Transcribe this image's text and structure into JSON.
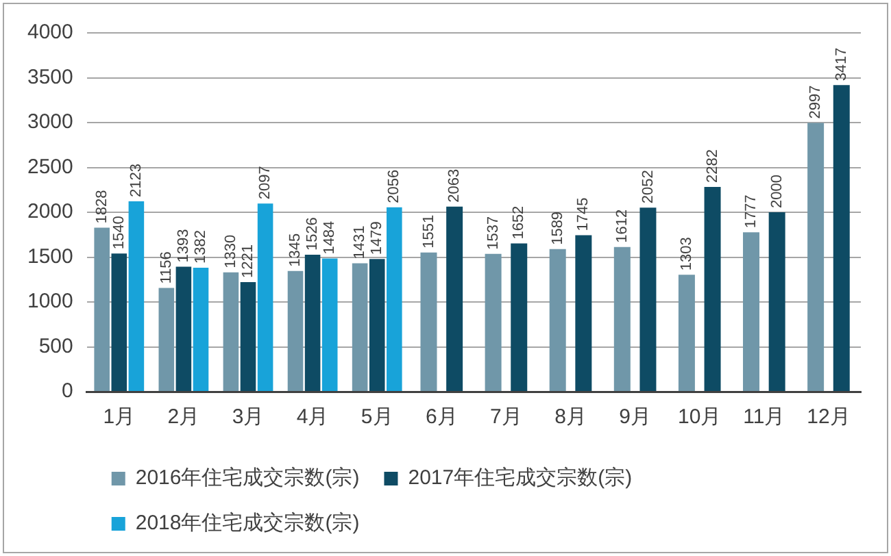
{
  "chart_data": {
    "type": "bar",
    "categories": [
      "1月",
      "2月",
      "3月",
      "4月",
      "5月",
      "6月",
      "7月",
      "8月",
      "9月",
      "10月",
      "11月",
      "12月"
    ],
    "series": [
      {
        "name": "2016年住宅成交宗数(宗)",
        "color": "#7097a9",
        "values": [
          1828,
          1156,
          1330,
          1345,
          1431,
          1551,
          1537,
          1589,
          1612,
          1303,
          1777,
          2997
        ]
      },
      {
        "name": "2017年住宅成交宗数(宗)",
        "color": "#0e4b64",
        "values": [
          1540,
          1393,
          1221,
          1526,
          1479,
          2063,
          1652,
          1745,
          2052,
          2282,
          2000,
          3417
        ]
      },
      {
        "name": "2018年住宅成交宗数(宗)",
        "color": "#18a3d9",
        "values": [
          2123,
          1382,
          2097,
          1484,
          2056,
          null,
          null,
          null,
          null,
          null,
          null,
          null
        ]
      }
    ],
    "ylim": [
      0,
      4000
    ],
    "yticks": [
      0,
      500,
      1000,
      1500,
      2000,
      2500,
      3000,
      3500,
      4000
    ],
    "grid": "y",
    "legend": "bottom",
    "data_labels": true
  }
}
